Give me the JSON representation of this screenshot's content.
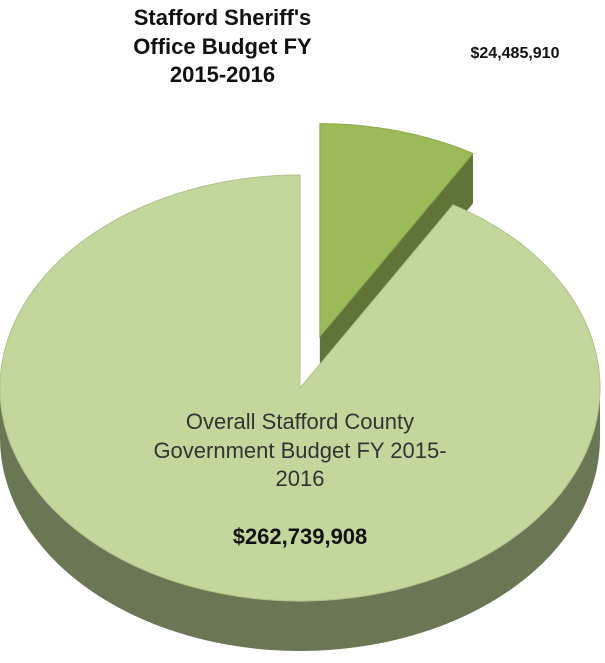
{
  "chart_data": {
    "type": "pie",
    "categories": [
      "Stafford Sheriff's Office Budget FY 2015-2016",
      "Overall Stafford County Government Budget FY 2015-2016"
    ],
    "values": [
      24485910,
      262739908
    ],
    "value_labels": [
      "$24,485,910",
      "$262,739,908"
    ],
    "colors": [
      "#9bbb59",
      "#c3d69b"
    ],
    "exploded": [
      true,
      false
    ]
  }
}
